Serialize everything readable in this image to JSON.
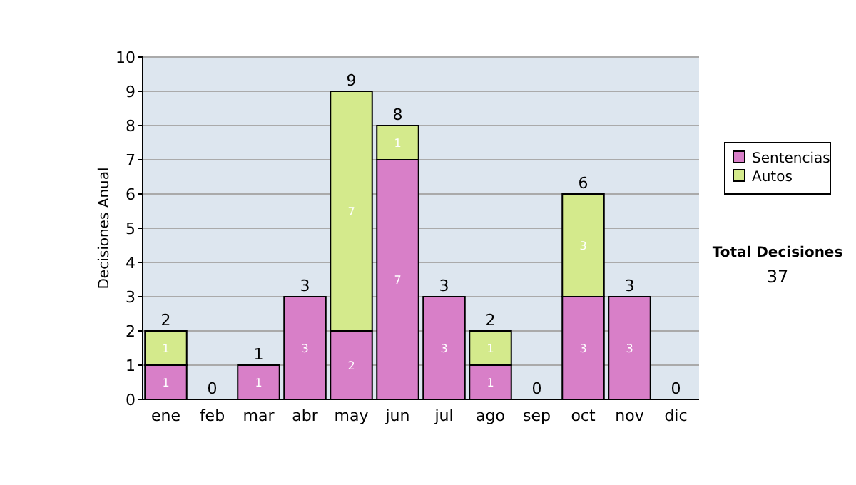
{
  "chart_data": {
    "type": "bar",
    "stacked": true,
    "ylabel": "Decisiones Anual",
    "categories": [
      "ene",
      "feb",
      "mar",
      "abr",
      "may",
      "jun",
      "jul",
      "ago",
      "sep",
      "oct",
      "nov",
      "dic"
    ],
    "series": [
      {
        "name": "Sentencias",
        "color": "#d87fc8",
        "values": [
          1,
          0,
          1,
          3,
          2,
          7,
          3,
          1,
          0,
          3,
          3,
          0
        ],
        "value_labels": [
          "1",
          null,
          "1",
          "3",
          "2",
          "7",
          "3",
          "1",
          null,
          "3",
          "3",
          null
        ]
      },
      {
        "name": "Autos",
        "color": "#d4ea8c",
        "values": [
          1,
          0,
          0,
          0,
          7,
          1,
          0,
          1,
          0,
          3,
          0,
          0
        ],
        "value_labels": [
          "1",
          null,
          null,
          null,
          "7",
          "1",
          null,
          "1",
          null,
          "3",
          null,
          null
        ]
      }
    ],
    "totals": [
      "2",
      "0",
      "1",
      "3",
      "9",
      "8",
      "3",
      "2",
      "0",
      "6",
      "3",
      "0"
    ],
    "ylim": [
      0,
      10
    ],
    "yticks": [
      0,
      1,
      2,
      3,
      4,
      5,
      6,
      7,
      8,
      9,
      10
    ],
    "grid": "y",
    "legend": "right",
    "annotations": [
      "Total Decisiones",
      "37"
    ]
  }
}
